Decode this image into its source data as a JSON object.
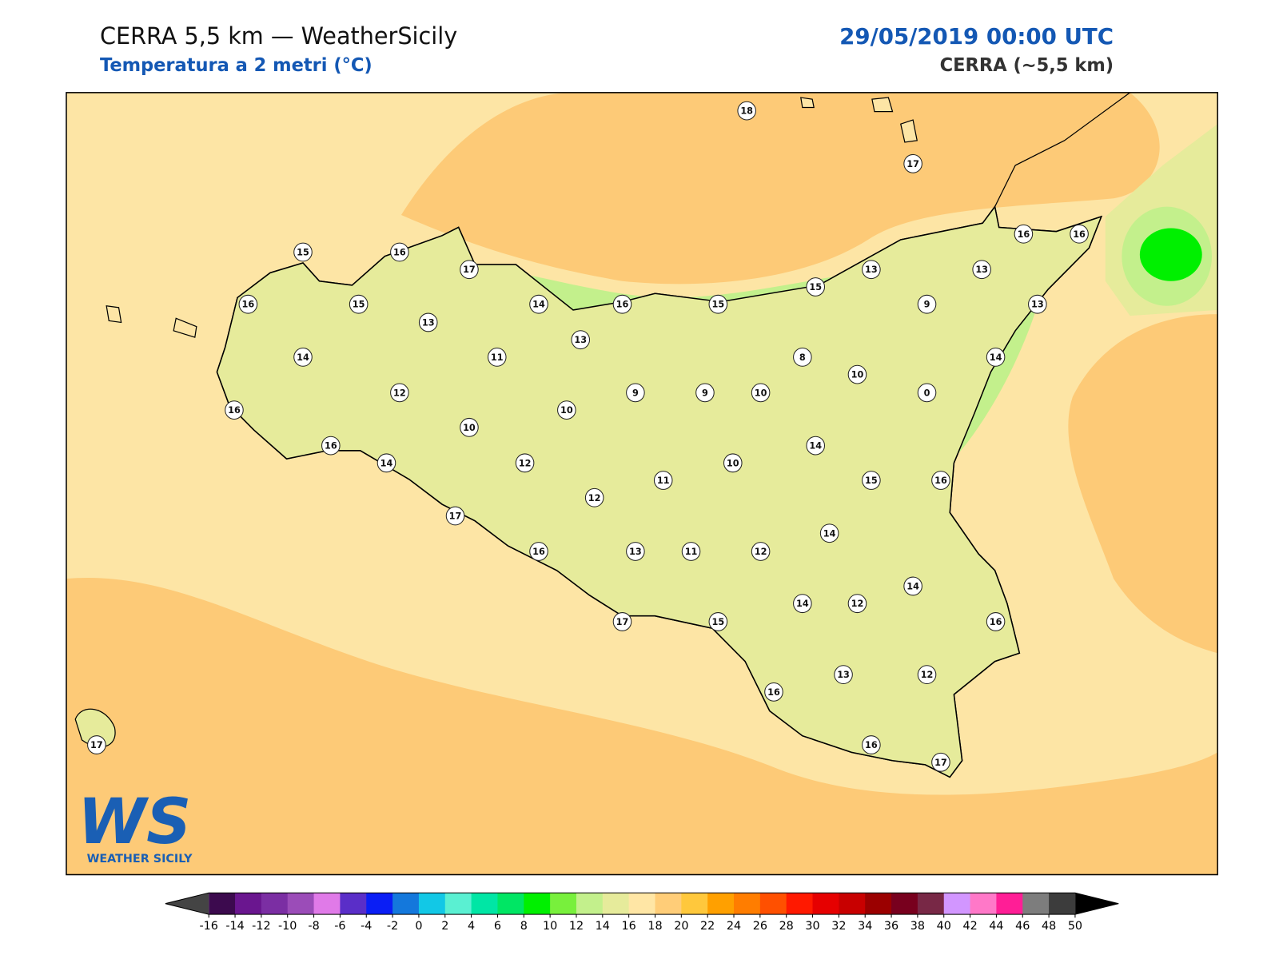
{
  "header": {
    "title": "CERRA 5,5 km — WeatherSicily",
    "subtitle": "Temperatura a 2 metri (°C)",
    "date": "29/05/2019 00:00 UTC",
    "model": "CERRA (~5,5 km)"
  },
  "logo": {
    "mark": "WS",
    "text": "WEATHER SICILY"
  },
  "stations": [
    18,
    17,
    15,
    16,
    17,
    16,
    16,
    16,
    15,
    14,
    16,
    15,
    15,
    13,
    13,
    9,
    13,
    13,
    13,
    14,
    11,
    8,
    14,
    10,
    12,
    9,
    9,
    10,
    0,
    16,
    10,
    10,
    16,
    14,
    14,
    12,
    10,
    11,
    15,
    16,
    12,
    17,
    14,
    16,
    13,
    11,
    12,
    14,
    14,
    12,
    17,
    15,
    16,
    13,
    12,
    16,
    17,
    16,
    17
  ],
  "colorbar": {
    "ticks": [
      -16,
      -14,
      -12,
      -10,
      -8,
      -6,
      -4,
      -2,
      0,
      2,
      4,
      6,
      8,
      10,
      12,
      14,
      16,
      18,
      20,
      22,
      24,
      26,
      28,
      30,
      32,
      34,
      36,
      38,
      40,
      42,
      44,
      46,
      48,
      50
    ],
    "colors": [
      "#3c0a4e",
      "#6a168f",
      "#7b2ea3",
      "#9b4cb8",
      "#e07ae8",
      "#5a2ec8",
      "#0a1ef5",
      "#1478dc",
      "#12c8e6",
      "#5af0d2",
      "#00e6a5",
      "#00e664",
      "#00f000",
      "#78f03c",
      "#c3f08c",
      "#e6eb9b",
      "#ffe6a5",
      "#ffcd78",
      "#ffc83c",
      "#ffa000",
      "#ff7d00",
      "#ff5000",
      "#ff1900",
      "#e60000",
      "#c80000",
      "#9b0000",
      "#78001e",
      "#782846",
      "#d296ff",
      "#ff78c8",
      "#ff1e96",
      "#7d7d7d",
      "#3c3c3c"
    ],
    "under": "#444444",
    "over": "#000000"
  }
}
